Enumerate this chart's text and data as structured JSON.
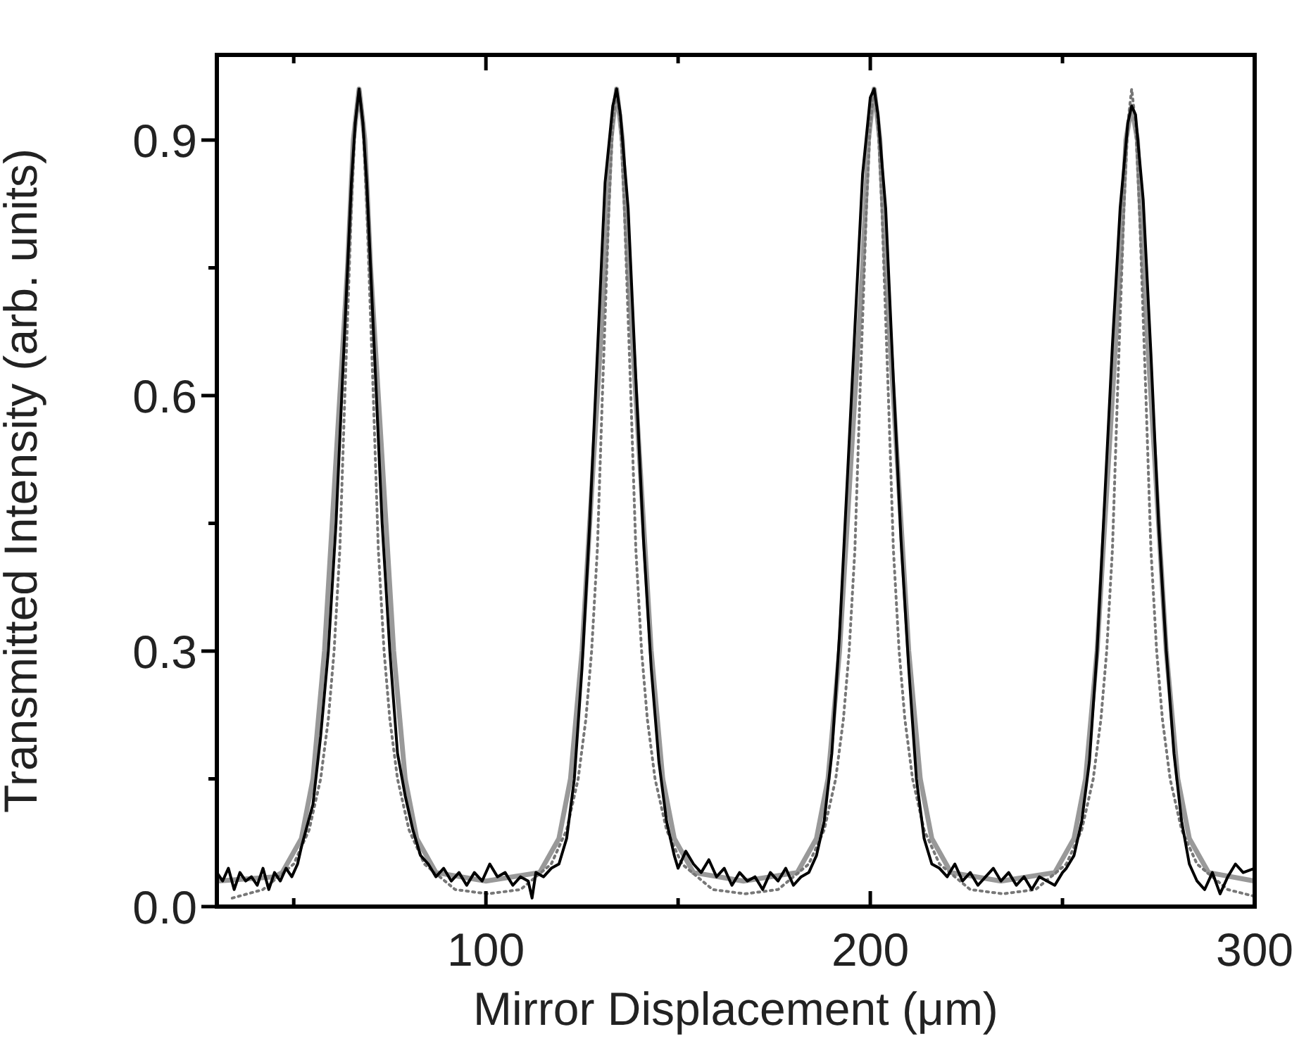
{
  "chart_data": {
    "type": "line",
    "xlabel": "Mirror Displacement (μm)",
    "ylabel": "Transmitted Intensity (arb. units)",
    "xlim": [
      30,
      300
    ],
    "ylim": [
      0,
      1
    ],
    "xticks": [
      {
        "value": 50,
        "label": null
      },
      100,
      {
        "value": 150,
        "label": null
      },
      200,
      {
        "value": 250,
        "label": null
      },
      300
    ],
    "yticks": [
      {
        "value": 0,
        "label": "0.0"
      },
      {
        "value": 0.15,
        "label": null
      },
      {
        "value": 0.3,
        "label": "0.3"
      },
      {
        "value": 0.45,
        "label": null
      },
      {
        "value": 0.6,
        "label": "0.6"
      },
      {
        "value": 0.75,
        "label": null
      },
      {
        "value": 0.9,
        "label": "0.9"
      }
    ],
    "series": [
      {
        "color": "#999999",
        "line_style": "solid",
        "x": [
          30,
          45,
          47,
          52,
          55,
          58,
          60,
          62,
          64,
          65.5,
          67,
          68.5,
          70,
          72,
          74,
          76,
          79,
          82,
          87,
          100,
          114,
          119,
          122,
          125,
          127,
          129,
          131,
          132.5,
          134,
          135.5,
          137,
          139,
          141,
          143,
          146,
          149,
          154,
          167,
          181,
          186,
          189,
          192,
          194,
          196,
          198,
          199.5,
          201,
          202.5,
          204,
          206,
          208,
          210,
          213,
          216,
          221,
          234,
          248,
          253,
          256,
          259,
          261,
          263,
          265,
          266.5,
          268,
          269.5,
          271,
          273,
          275,
          277,
          280,
          283,
          288,
          300
        ],
        "values": [
          0.03,
          0.035,
          0.04,
          0.08,
          0.15,
          0.3,
          0.45,
          0.6,
          0.75,
          0.9,
          0.96,
          0.9,
          0.75,
          0.6,
          0.45,
          0.3,
          0.15,
          0.08,
          0.04,
          0.03,
          0.04,
          0.08,
          0.15,
          0.3,
          0.45,
          0.6,
          0.75,
          0.9,
          0.96,
          0.9,
          0.75,
          0.6,
          0.45,
          0.3,
          0.15,
          0.08,
          0.04,
          0.03,
          0.04,
          0.08,
          0.15,
          0.3,
          0.45,
          0.6,
          0.75,
          0.9,
          0.96,
          0.9,
          0.75,
          0.6,
          0.45,
          0.3,
          0.15,
          0.08,
          0.04,
          0.03,
          0.04,
          0.08,
          0.15,
          0.3,
          0.45,
          0.6,
          0.75,
          0.9,
          0.94,
          0.9,
          0.75,
          0.6,
          0.45,
          0.3,
          0.15,
          0.08,
          0.04,
          0.03
        ]
      },
      {
        "color": "#777777",
        "line_style": "dotted",
        "x": [
          34,
          42,
          50,
          54,
          57,
          59,
          60.5,
          62,
          63.3,
          65,
          66,
          67,
          68,
          69,
          70.7,
          72,
          73.5,
          75,
          77,
          80,
          84,
          92,
          100.5,
          109,
          117,
          121,
          124,
          126,
          127.5,
          129,
          130.3,
          132,
          133,
          134,
          135,
          136,
          137.7,
          139,
          140.5,
          142,
          144,
          147,
          151,
          159,
          167.5,
          176,
          184,
          188,
          191,
          193,
          194.5,
          196,
          197.3,
          199,
          200,
          201,
          202,
          203,
          204.7,
          206,
          207.5,
          209,
          211,
          214,
          218,
          226,
          234.5,
          243,
          251,
          255,
          258,
          260,
          261.5,
          263,
          264.3,
          266,
          267,
          268,
          269,
          270,
          271.7,
          273,
          274.5,
          276,
          278,
          281,
          285,
          293,
          300
        ],
        "values": [
          0.01,
          0.02,
          0.05,
          0.09,
          0.15,
          0.22,
          0.3,
          0.42,
          0.6,
          0.82,
          0.92,
          0.96,
          0.92,
          0.82,
          0.6,
          0.42,
          0.3,
          0.22,
          0.15,
          0.09,
          0.05,
          0.02,
          0.015,
          0.02,
          0.05,
          0.09,
          0.15,
          0.22,
          0.3,
          0.42,
          0.6,
          0.82,
          0.92,
          0.96,
          0.92,
          0.82,
          0.6,
          0.42,
          0.3,
          0.22,
          0.15,
          0.09,
          0.05,
          0.02,
          0.015,
          0.02,
          0.05,
          0.09,
          0.15,
          0.22,
          0.3,
          0.42,
          0.6,
          0.82,
          0.92,
          0.96,
          0.92,
          0.82,
          0.6,
          0.42,
          0.3,
          0.22,
          0.15,
          0.09,
          0.05,
          0.02,
          0.015,
          0.02,
          0.05,
          0.09,
          0.15,
          0.22,
          0.3,
          0.42,
          0.6,
          0.82,
          0.92,
          0.96,
          0.92,
          0.82,
          0.6,
          0.42,
          0.3,
          0.22,
          0.15,
          0.09,
          0.05,
          0.02,
          0.012
        ]
      },
      {
        "color": "#000000",
        "line_style": "solid",
        "x": [
          30,
          31.5,
          33,
          34.5,
          36,
          37.5,
          39,
          40.5,
          42,
          43.5,
          45,
          46.5,
          48,
          49.5,
          51,
          52,
          55,
          57,
          59,
          61,
          63,
          65,
          66,
          67,
          68,
          69,
          71,
          73,
          75,
          77,
          79,
          81,
          83,
          85,
          87,
          89,
          91,
          93,
          95,
          97,
          99,
          101,
          103,
          105,
          107,
          109,
          111,
          112,
          113,
          115,
          117,
          119,
          121,
          123,
          125,
          127,
          129,
          131,
          133,
          134,
          135,
          137,
          139,
          141,
          143,
          145,
          147,
          149,
          150,
          152,
          154,
          156,
          158,
          160,
          162,
          164,
          166,
          168,
          170,
          172,
          174,
          176,
          178,
          180,
          182,
          184,
          186,
          188,
          190,
          192,
          194,
          196,
          198,
          200,
          201,
          202,
          204,
          206,
          208,
          210,
          212,
          214,
          216,
          218,
          220,
          222,
          224,
          226,
          228,
          230,
          232,
          234,
          236,
          238,
          240,
          242,
          244,
          246,
          248,
          250,
          251,
          253,
          255,
          257,
          259,
          261,
          263,
          265,
          267,
          268,
          269,
          271,
          273,
          275,
          277,
          279,
          281,
          283,
          285,
          287,
          289,
          291,
          293,
          295,
          297,
          300
        ],
        "values": [
          0.04,
          0.03,
          0.045,
          0.02,
          0.04,
          0.03,
          0.035,
          0.025,
          0.045,
          0.02,
          0.04,
          0.03,
          0.045,
          0.035,
          0.05,
          0.07,
          0.12,
          0.2,
          0.3,
          0.45,
          0.65,
          0.85,
          0.92,
          0.96,
          0.92,
          0.85,
          0.65,
          0.45,
          0.3,
          0.18,
          0.13,
          0.09,
          0.06,
          0.05,
          0.035,
          0.045,
          0.03,
          0.04,
          0.025,
          0.04,
          0.03,
          0.05,
          0.035,
          0.04,
          0.025,
          0.035,
          0.03,
          0.01,
          0.04,
          0.035,
          0.045,
          0.05,
          0.08,
          0.15,
          0.28,
          0.45,
          0.65,
          0.85,
          0.94,
          0.96,
          0.93,
          0.82,
          0.62,
          0.43,
          0.28,
          0.17,
          0.1,
          0.06,
          0.045,
          0.065,
          0.05,
          0.04,
          0.055,
          0.035,
          0.045,
          0.025,
          0.04,
          0.03,
          0.035,
          0.02,
          0.04,
          0.03,
          0.045,
          0.025,
          0.035,
          0.04,
          0.06,
          0.1,
          0.18,
          0.32,
          0.5,
          0.68,
          0.86,
          0.95,
          0.96,
          0.93,
          0.82,
          0.62,
          0.43,
          0.28,
          0.15,
          0.08,
          0.05,
          0.045,
          0.035,
          0.05,
          0.03,
          0.04,
          0.025,
          0.035,
          0.045,
          0.03,
          0.04,
          0.025,
          0.035,
          0.02,
          0.035,
          0.03,
          0.025,
          0.04,
          0.045,
          0.06,
          0.1,
          0.17,
          0.3,
          0.48,
          0.66,
          0.82,
          0.92,
          0.94,
          0.93,
          0.83,
          0.65,
          0.45,
          0.3,
          0.18,
          0.1,
          0.05,
          0.03,
          0.02,
          0.04,
          0.015,
          0.035,
          0.05,
          0.04,
          0.045
        ]
      }
    ]
  }
}
